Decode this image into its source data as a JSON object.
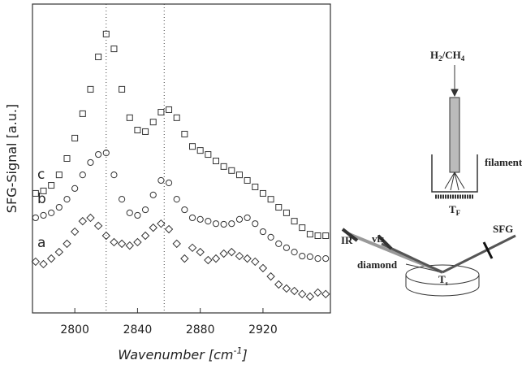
{
  "chart_data": {
    "type": "scatter",
    "y_label": "SFG-Signal [a.u.]",
    "x_label": {
      "text": "Wavenumber [cm",
      "sup": "-1",
      "end": "]"
    },
    "xlim": [
      2773,
      2963
    ],
    "xticks": [
      2800,
      2840,
      2880,
      2920
    ],
    "ylim": [
      0,
      100
    ],
    "vlines": [
      2820,
      2857
    ],
    "x": [
      2775,
      2780,
      2785,
      2790,
      2795,
      2800,
      2805,
      2810,
      2815,
      2820,
      2825,
      2830,
      2835,
      2840,
      2845,
      2850,
      2855,
      2860,
      2865,
      2870,
      2875,
      2880,
      2885,
      2890,
      2895,
      2900,
      2905,
      2910,
      2915,
      2920,
      2925,
      2930,
      2935,
      2940,
      2945,
      2950,
      2955,
      2960
    ],
    "series": [
      {
        "name": "a",
        "marker": "diamond",
        "color": "#333333",
        "values": [
          16.6,
          15.8,
          17.6,
          19.7,
          22.4,
          26.3,
          29.7,
          30.8,
          28.2,
          25,
          22.9,
          22.4,
          21.8,
          22.9,
          25,
          27.6,
          28.9,
          27.1,
          22.4,
          17.6,
          21.1,
          19.7,
          17.1,
          17.6,
          19.2,
          19.7,
          18.4,
          17.6,
          16.6,
          14.5,
          11.8,
          9.2,
          7.9,
          7.1,
          6.1,
          5.3,
          6.6,
          6.1
        ]
      },
      {
        "name": "b",
        "marker": "circle",
        "color": "#333333",
        "values": [
          30.8,
          31.6,
          32.4,
          34.2,
          36.8,
          40.3,
          44.7,
          48.7,
          51.3,
          51.8,
          44.7,
          36.8,
          32.4,
          31.6,
          33.4,
          38.2,
          42.9,
          42.1,
          36.8,
          33.4,
          30.8,
          30.3,
          29.7,
          28.9,
          28.7,
          28.9,
          30.3,
          30.8,
          28.9,
          26.3,
          24.5,
          22.4,
          21.1,
          19.7,
          18.4,
          18.2,
          17.6,
          17.6
        ]
      },
      {
        "name": "c",
        "marker": "square",
        "color": "#333333",
        "values": [
          38.7,
          39.5,
          41.3,
          44.7,
          50,
          56.6,
          64.5,
          72.4,
          82.9,
          90.3,
          85.5,
          72.4,
          63.2,
          59.2,
          58.7,
          61.8,
          65,
          65.8,
          63.2,
          57.9,
          53.9,
          52.6,
          51.3,
          49.2,
          47.4,
          46.1,
          44.7,
          42.9,
          40.8,
          38.7,
          36.8,
          34.2,
          32.4,
          29.7,
          27.6,
          25.5,
          25,
          25
        ]
      }
    ]
  },
  "diagram": {
    "gas": {
      "p1": "H",
      "s1": "2",
      "p2": "/CH",
      "s2": "4"
    },
    "filament": "filament",
    "ir": "IR",
    "vis": "vis",
    "sfg": "SFG",
    "tf": {
      "base": "T",
      "sub": "F"
    },
    "ts": {
      "base": "T",
      "sub": "s"
    },
    "diamond": "diamond"
  }
}
